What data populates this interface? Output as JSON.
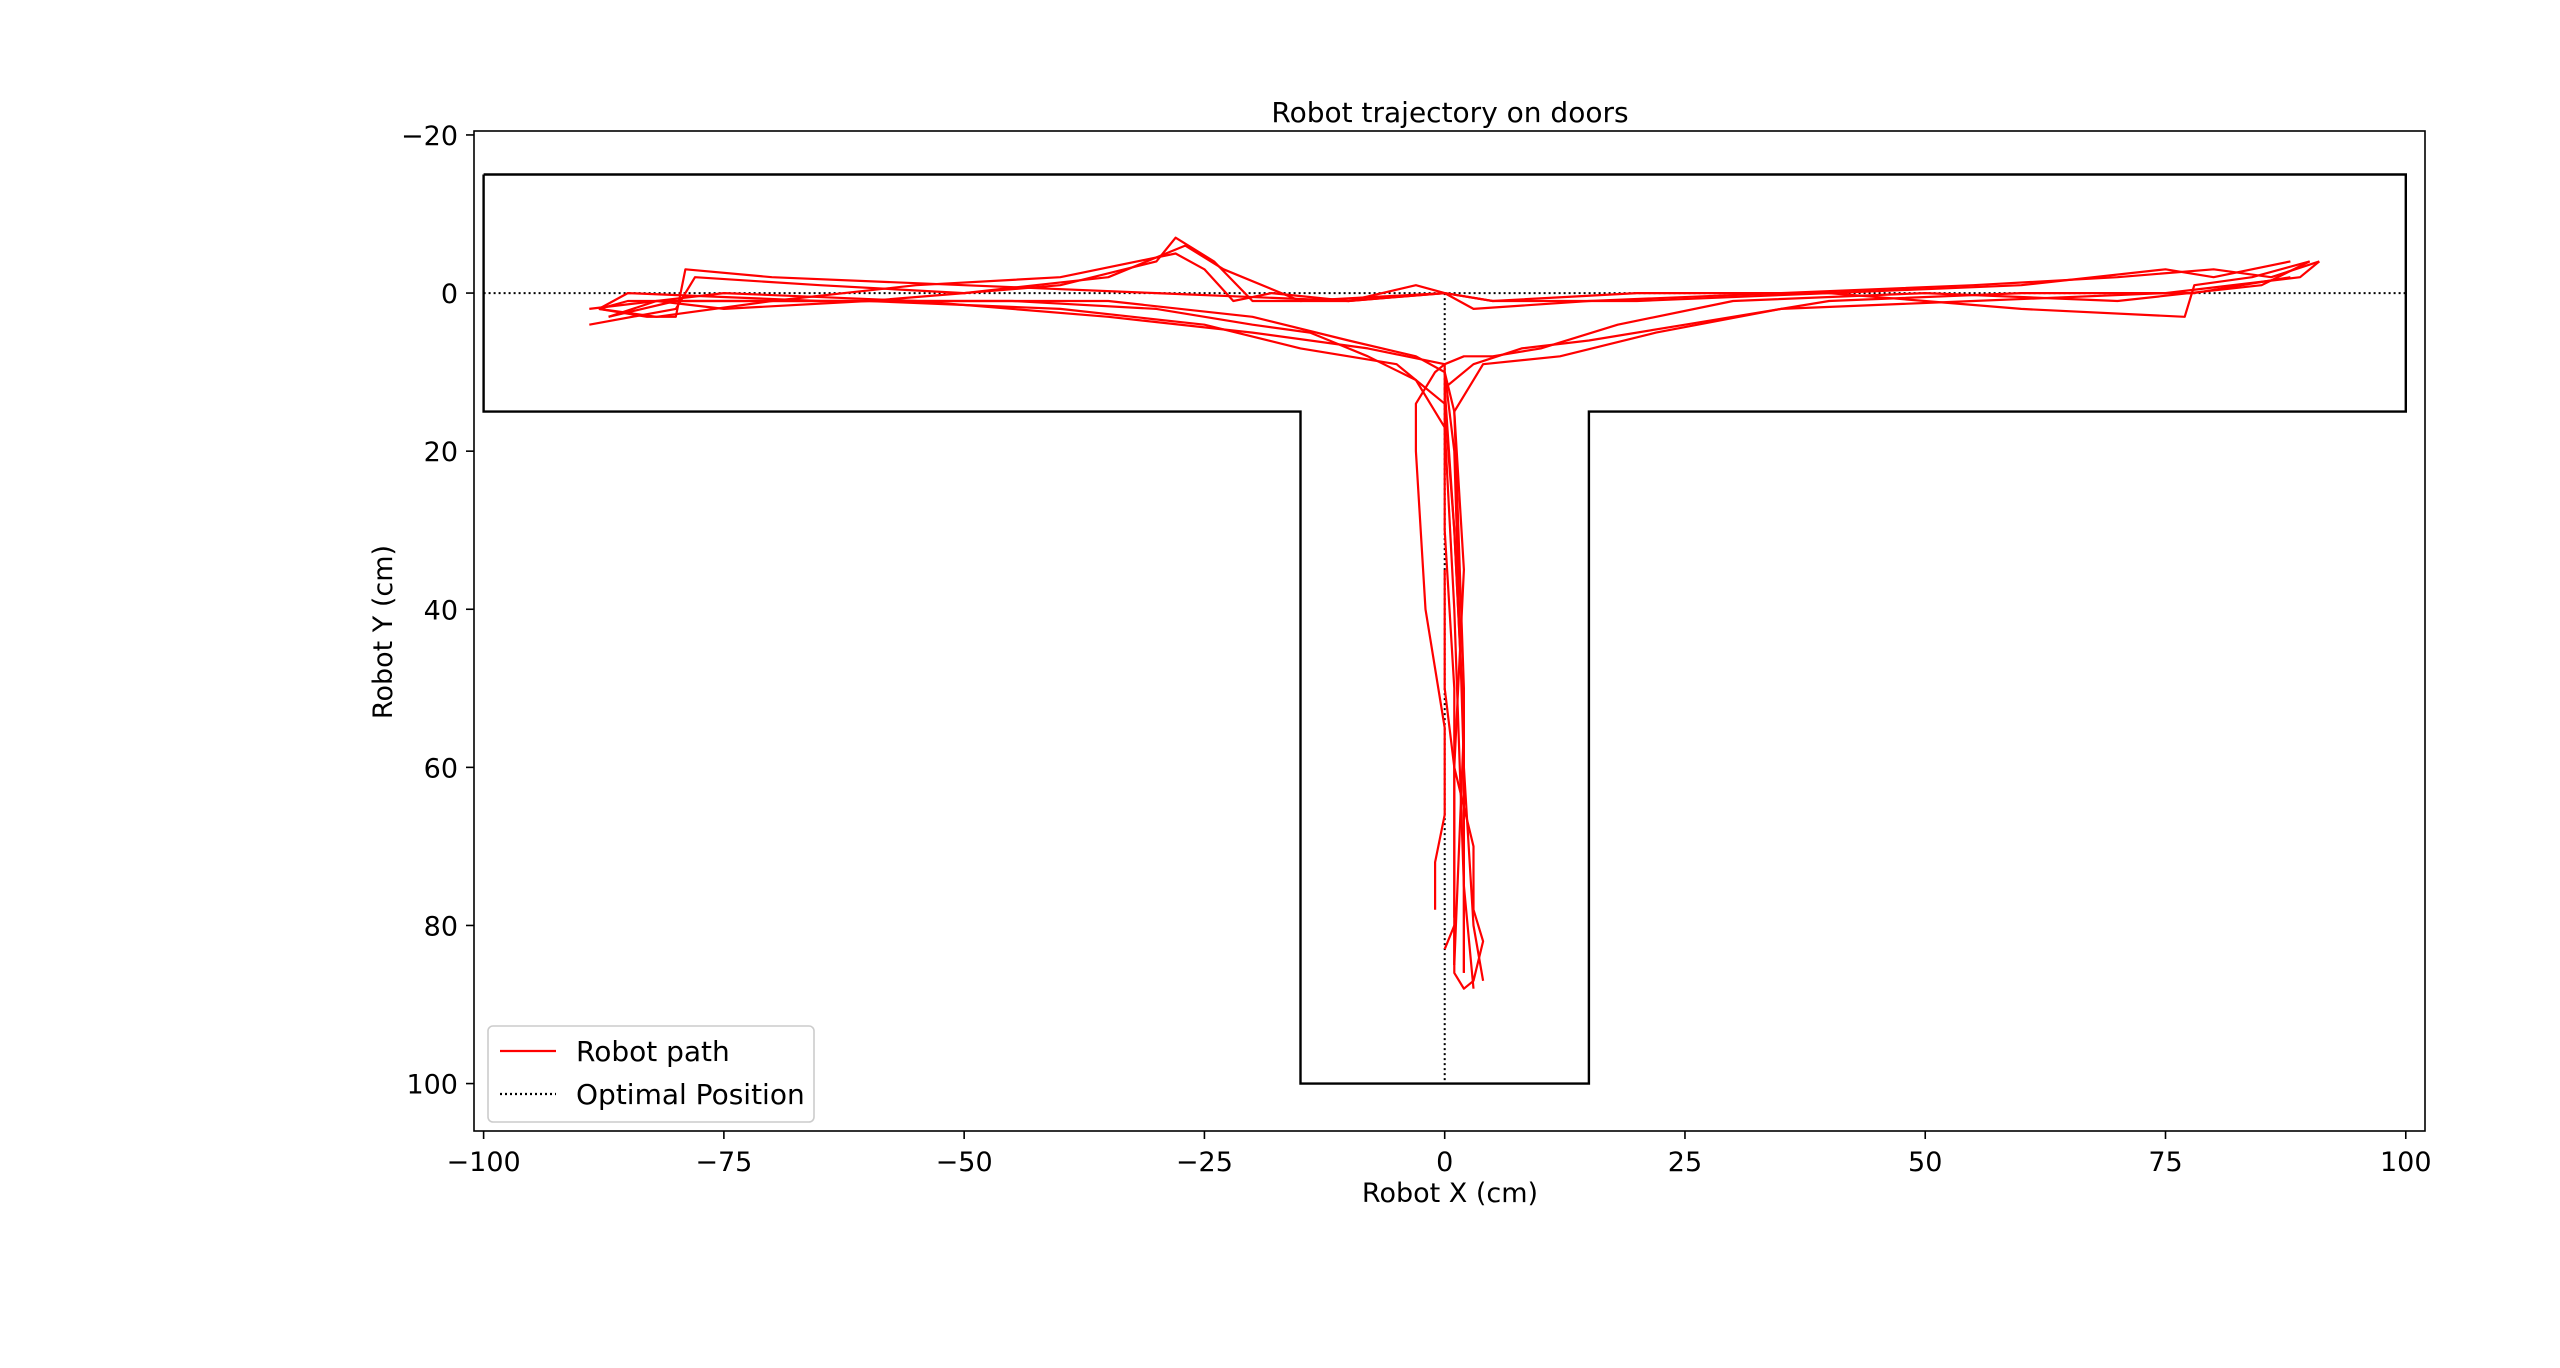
{
  "chart_data": {
    "type": "line",
    "title": "Robot trajectory on doors",
    "xlabel": "Robot X (cm)",
    "ylabel": "Robot Y (cm)",
    "xlim": [
      -101,
      102
    ],
    "ylim": [
      106,
      -20.5
    ],
    "y_inverted": true,
    "x_ticks": [
      -100,
      -75,
      -50,
      -25,
      0,
      25,
      50,
      75,
      100
    ],
    "x_tick_labels": [
      "−100",
      "−75",
      "−50",
      "−25",
      "0",
      "25",
      "50",
      "75",
      "100"
    ],
    "y_ticks": [
      -20,
      0,
      20,
      40,
      60,
      80,
      100
    ],
    "y_tick_labels": [
      "−20",
      "0",
      "20",
      "40",
      "60",
      "80",
      "100"
    ],
    "grid": false,
    "legend_position": "lower-left",
    "colors": {
      "path": "#ff0000",
      "optimal": "#000000",
      "boundary": "#000000"
    },
    "boundary": {
      "name": "",
      "x": [
        -100,
        100,
        100,
        15,
        15,
        -15,
        -15,
        -100,
        -100
      ],
      "y": [
        -15,
        -15,
        15,
        15,
        100,
        100,
        15,
        15,
        -15
      ]
    },
    "series": [
      {
        "name": "Optimal Position",
        "style": "dotted",
        "segments": [
          {
            "x": [
              -100,
              100
            ],
            "y": [
              0,
              0
            ]
          },
          {
            "x": [
              0,
              0
            ],
            "y": [
              0,
              100
            ]
          }
        ]
      },
      {
        "name": "Robot path",
        "style": "solid",
        "segments": [
          {
            "x": [
              1,
              1,
              2,
              1,
              0,
              -3,
              -10,
              -20,
              -35,
              -55,
              -75,
              -85,
              -88
            ],
            "y": [
              85,
              60,
              35,
              15,
              10,
              8,
              6,
              3,
              1,
              1,
              1,
              1,
              2
            ]
          },
          {
            "x": [
              -88,
              -83,
              -80,
              -79,
              -70,
              -50,
              -30,
              -10,
              0
            ],
            "y": [
              2,
              3,
              3,
              -3,
              -2,
              -1,
              0,
              1,
              0
            ]
          },
          {
            "x": [
              2,
              2,
              1,
              0,
              -5,
              -15,
              -25,
              -40,
              -60,
              -80,
              -87
            ],
            "y": [
              86,
              55,
              30,
              14,
              9,
              7,
              4,
              2,
              1,
              1,
              3
            ]
          },
          {
            "x": [
              -87,
              -82,
              -75,
              -60,
              -50,
              -40,
              -30,
              -28,
              -24,
              -20,
              -10,
              0
            ],
            "y": [
              3,
              1,
              2,
              1,
              0,
              -1,
              -4,
              -7,
              -4,
              1,
              1,
              0
            ]
          },
          {
            "x": [
              0,
              -8,
              -20,
              -35,
              -55,
              -75,
              -89
            ],
            "y": [
              9,
              7,
              5,
              3,
              1,
              0,
              2
            ]
          },
          {
            "x": [
              -89,
              -80,
              -78,
              -65,
              -50,
              -35,
              -27,
              -23,
              -15,
              0
            ],
            "y": [
              4,
              2,
              -2,
              -1,
              0,
              -2,
              -6,
              -3,
              1,
              0
            ]
          },
          {
            "x": [
              3,
              2,
              1,
              0,
              -3,
              -8,
              -12,
              -14,
              -20,
              -30,
              -45,
              -65,
              -85,
              -88
            ],
            "y": [
              88,
              75,
              40,
              17,
              11,
              8,
              6,
              5,
              4,
              2,
              1,
              1,
              0,
              2
            ]
          },
          {
            "x": [
              -88,
              -82,
              -70,
              -55,
              -40,
              -28,
              -25,
              -22,
              -18,
              -10,
              -3,
              0
            ],
            "y": [
              2,
              3,
              1,
              -1,
              -2,
              -5,
              -3,
              1,
              0,
              1,
              -1,
              0
            ]
          },
          {
            "x": [
              -1,
              -1,
              0,
              0,
              -2,
              -3,
              -3,
              -1,
              0,
              0,
              1,
              1
            ],
            "y": [
              78,
              72,
              66,
              55,
              40,
              20,
              14,
              10,
              9,
              30,
              50,
              79
            ]
          },
          {
            "x": [
              0,
              0,
              1,
              2,
              3,
              3,
              4,
              3,
              2,
              1,
              1,
              0
            ],
            "y": [
              35,
              50,
              60,
              65,
              70,
              78,
              82,
              87,
              88,
              86,
              80,
              83
            ]
          },
          {
            "x": [
              1,
              2,
              1,
              0,
              3,
              8,
              15,
              25,
              40,
              60,
              78,
              88
            ],
            "y": [
              85,
              55,
              30,
              12,
              9,
              7,
              6,
              4,
              1,
              0,
              0,
              -2
            ]
          },
          {
            "x": [
              88,
              80,
              75,
              60,
              40,
              20,
              5,
              0
            ],
            "y": [
              -4,
              -2,
              -3,
              -1,
              0,
              1,
              1,
              0
            ]
          },
          {
            "x": [
              0,
              2,
              5,
              10,
              18,
              30,
              50,
              70,
              85,
              90
            ],
            "y": [
              9,
              8,
              8,
              7,
              4,
              1,
              0,
              1,
              -1,
              -4
            ]
          },
          {
            "x": [
              90,
              84,
              78,
              77,
              60,
              40,
              20,
              5,
              0
            ],
            "y": [
              -4,
              -2,
              -1,
              3,
              2,
              0,
              0,
              1,
              0
            ]
          },
          {
            "x": [
              2,
              2,
              1,
              4,
              12,
              22,
              35,
              55,
              75,
              89,
              91
            ],
            "y": [
              86,
              50,
              15,
              9,
              8,
              5,
              2,
              1,
              0,
              -2,
              -4
            ]
          },
          {
            "x": [
              91,
              86,
              80,
              70,
              55,
              35,
              15,
              3,
              0
            ],
            "y": [
              -4,
              -2,
              -3,
              -2,
              -1,
              0,
              1,
              2,
              0
            ]
          },
          {
            "x": [
              4,
              3,
              2,
              1,
              0
            ],
            "y": [
              87,
              80,
              60,
              20,
              10
            ]
          }
        ]
      }
    ]
  }
}
